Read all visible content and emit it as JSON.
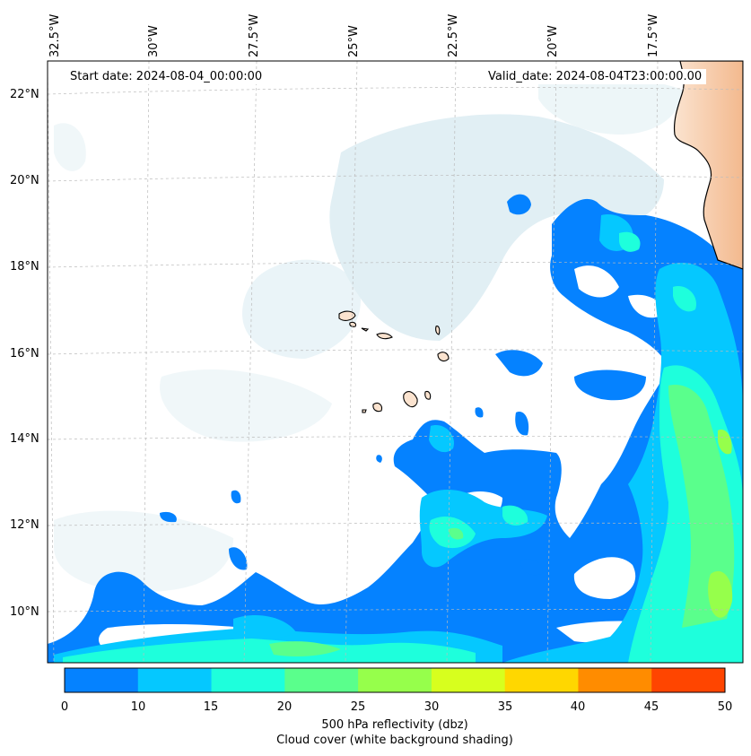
{
  "map": {
    "start_label": "Start date: 2024-08-04_00:00:00",
    "valid_label": "Valid_date: 2024-08-04T23:00:00.00",
    "lon_ticks": [
      "32.5°W",
      "30°W",
      "27.5°W",
      "25°W",
      "22.5°W",
      "20°W",
      "17.5°W"
    ],
    "lat_ticks": [
      "22°N",
      "20°N",
      "18°N",
      "16°N",
      "14°N",
      "12°N",
      "10°N"
    ],
    "extent": {
      "lon_min": -33.0,
      "lon_max": -15.8,
      "lat_min": 8.9,
      "lat_max": 22.8
    },
    "projection_grid": "dashed lat/lon gridlines",
    "land_color": "#f4c9a8",
    "cloud_color": "#d6e9f0"
  },
  "colorbar": {
    "title": "500 hPa reflectivity (dbz)",
    "subtitle": "Cloud cover (white background shading)",
    "ticks": [
      "0",
      "10",
      "15",
      "20",
      "25",
      "30",
      "35",
      "40",
      "45",
      "50"
    ],
    "levels": [
      0,
      10,
      15,
      20,
      25,
      30,
      35,
      40,
      45,
      50
    ],
    "colors": [
      "#0582ff",
      "#05c8ff",
      "#1effdc",
      "#5aff8c",
      "#96ff4b",
      "#d7ff1e",
      "#ffd700",
      "#ff8c00",
      "#ff4500"
    ]
  }
}
